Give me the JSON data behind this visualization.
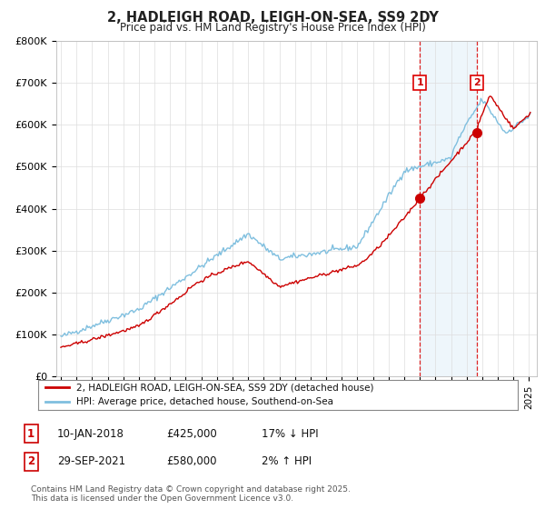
{
  "title": "2, HADLEIGH ROAD, LEIGH-ON-SEA, SS9 2DY",
  "subtitle": "Price paid vs. HM Land Registry's House Price Index (HPI)",
  "ylim": [
    0,
    800000
  ],
  "yticks": [
    0,
    100000,
    200000,
    300000,
    400000,
    500000,
    600000,
    700000,
    800000
  ],
  "ytick_labels": [
    "£0",
    "£100K",
    "£200K",
    "£300K",
    "£400K",
    "£500K",
    "£600K",
    "£700K",
    "£800K"
  ],
  "hpi_color": "#7fbfdf",
  "price_color": "#cc0000",
  "vline_color": "#dd0000",
  "marker1_price": 425000,
  "marker2_price": 580000,
  "legend_line1": "2, HADLEIGH ROAD, LEIGH-ON-SEA, SS9 2DY (detached house)",
  "legend_line2": "HPI: Average price, detached house, Southend-on-Sea",
  "table_row1": [
    "1",
    "10-JAN-2018",
    "£425,000",
    "17% ↓ HPI"
  ],
  "table_row2": [
    "2",
    "29-SEP-2021",
    "£580,000",
    "2% ↑ HPI"
  ],
  "footnote": "Contains HM Land Registry data © Crown copyright and database right 2025.\nThis data is licensed under the Open Government Licence v3.0.",
  "background_color": "#ffffff",
  "grid_color": "#dddddd"
}
